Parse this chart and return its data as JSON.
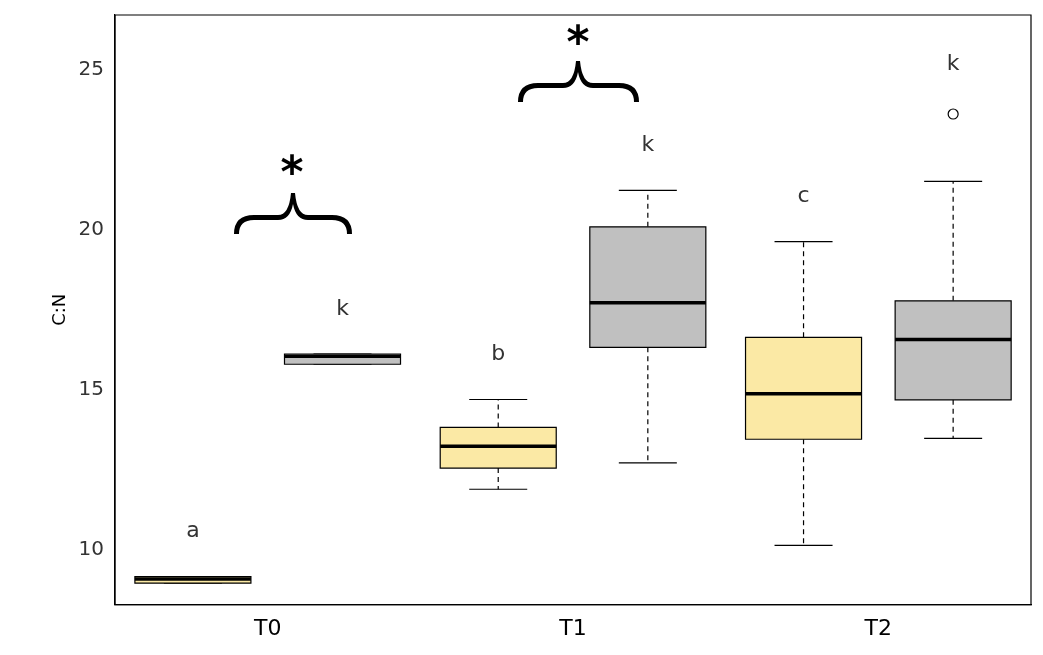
{
  "chart_data": {
    "type": "box",
    "ylabel": "C:N",
    "categories": [
      "T0",
      "T1",
      "T2"
    ],
    "ylim": [
      8.3,
      26.7
    ],
    "yticks": [
      10,
      15,
      20,
      25
    ],
    "grid": false,
    "legend": false,
    "series": [
      {
        "color": "#fbe9a5",
        "boxes": [
          {
            "low": 8.97,
            "q1": 8.97,
            "median": 9.1,
            "q3": 9.17,
            "high": 9.17
          },
          {
            "low": 11.9,
            "q1": 12.56,
            "median": 13.24,
            "q3": 13.83,
            "high": 14.7
          },
          {
            "low": 10.15,
            "q1": 13.46,
            "median": 14.88,
            "q3": 16.64,
            "high": 19.63
          }
        ]
      },
      {
        "color": "#c0c0c0",
        "boxes": [
          {
            "low": 15.8,
            "q1": 15.8,
            "median": 16.05,
            "q3": 16.12,
            "high": 16.12
          },
          {
            "low": 12.72,
            "q1": 16.33,
            "median": 17.72,
            "q3": 20.09,
            "high": 21.23
          },
          {
            "low": 13.49,
            "q1": 14.69,
            "median": 16.57,
            "q3": 17.78,
            "high": 21.51,
            "outliers": [
              23.61
            ]
          }
        ]
      }
    ],
    "annotations": [
      "a",
      "k",
      "b",
      "k",
      "c",
      "k",
      "*",
      "*"
    ]
  }
}
